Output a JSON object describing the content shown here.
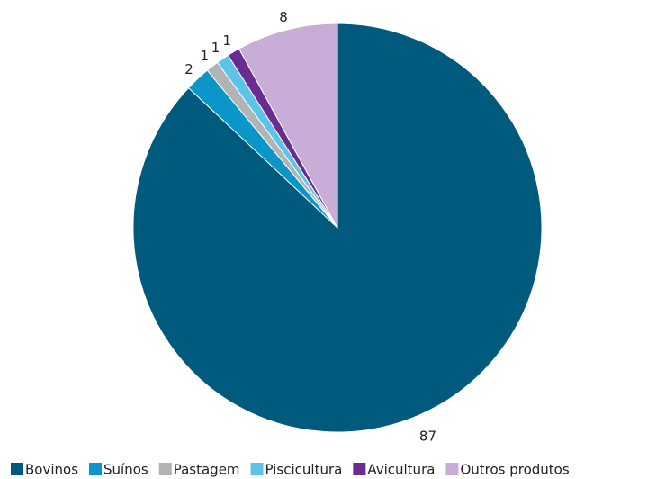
{
  "chart_data": {
    "type": "pie",
    "categories": [
      "Bovinos",
      "Suínos",
      "Pastagem",
      "Piscicultura",
      "Avicultura",
      "Outros produtos"
    ],
    "values": [
      87,
      2,
      1,
      1,
      1,
      8
    ],
    "colors": [
      "#005a7e",
      "#0a96c8",
      "#b3b3b3",
      "#5bc4e8",
      "#6a2c91",
      "#c8aed6"
    ],
    "legend": "bottom"
  }
}
